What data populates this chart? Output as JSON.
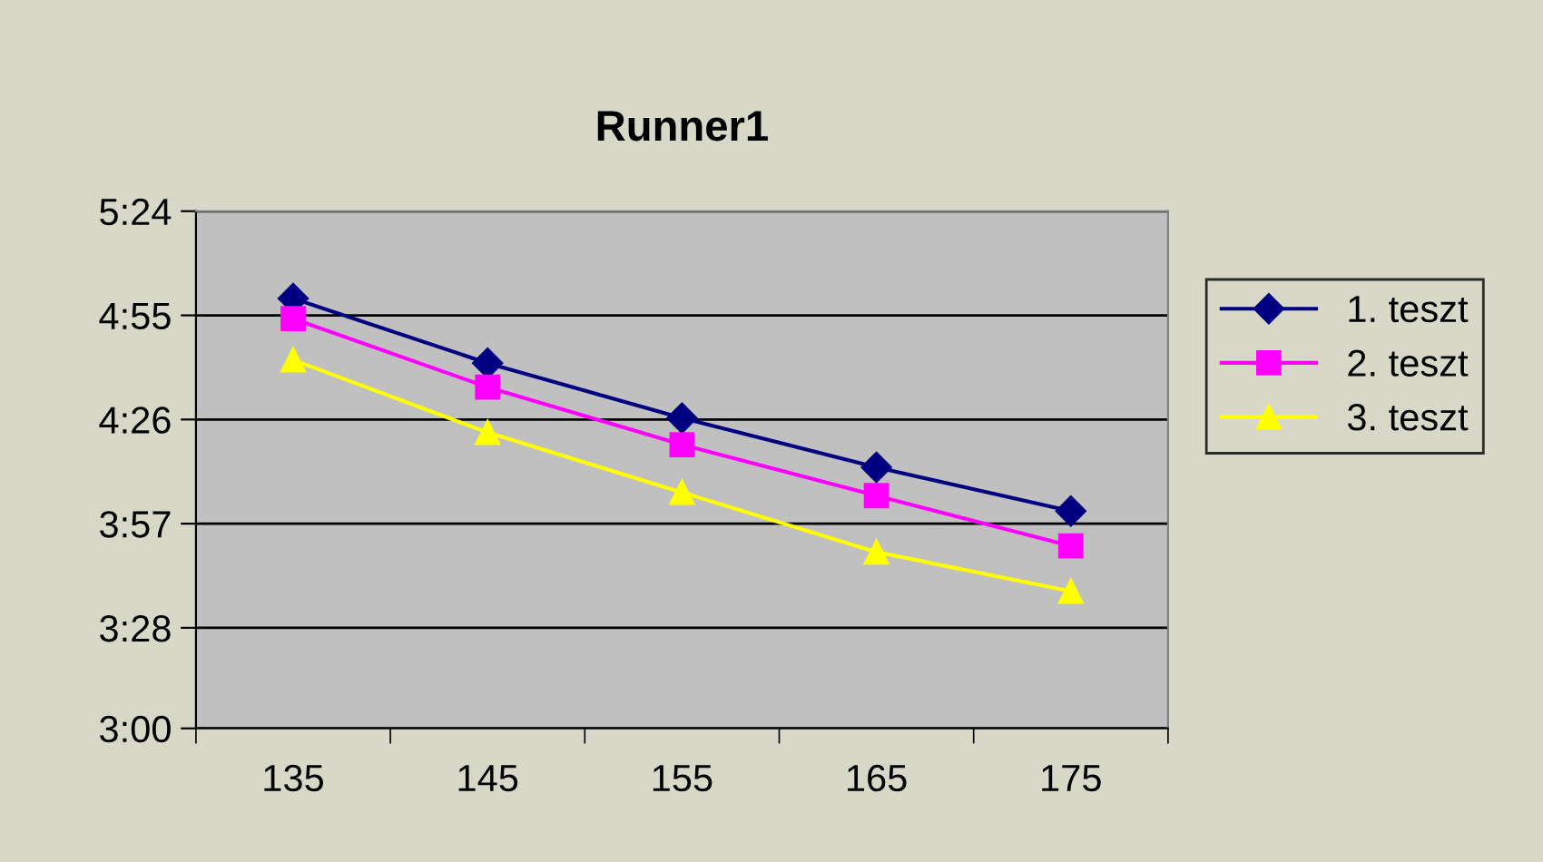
{
  "chart_data": {
    "type": "line",
    "title": "Runner1",
    "categories": [
      "135",
      "145",
      "155",
      "165",
      "175"
    ],
    "series": [
      {
        "name": "1. teszt",
        "color": "#000080",
        "marker": "diamond",
        "values": [
          299.7,
          281.7,
          266.4,
          252.7,
          240.5
        ]
      },
      {
        "name": "2. teszt",
        "color": "#ff00ff",
        "marker": "square",
        "values": [
          294.1,
          275.0,
          259.0,
          244.8,
          230.8
        ]
      },
      {
        "name": "3. teszt",
        "color": "#ffff00",
        "marker": "triangle",
        "values": [
          282.6,
          262.4,
          245.7,
          229.1,
          218.2
        ]
      }
    ],
    "ylim": [
      180,
      324
    ],
    "yticks": [
      {
        "value": 180,
        "label": "3:00"
      },
      {
        "value": 208,
        "label": "3:28"
      },
      {
        "value": 237,
        "label": "3:57"
      },
      {
        "value": 266,
        "label": "4:26"
      },
      {
        "value": 295,
        "label": "4:55"
      },
      {
        "value": 324,
        "label": "5:24"
      }
    ],
    "grid": "y",
    "legend": "right",
    "line_style": "solid"
  }
}
